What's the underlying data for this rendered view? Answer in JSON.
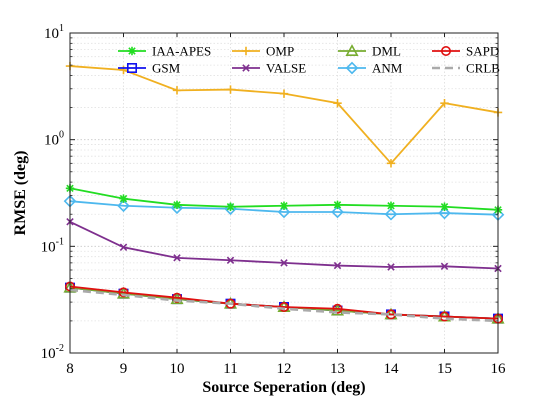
{
  "chart_data": {
    "type": "line",
    "title": "",
    "xlabel": "Source Seperation (deg)",
    "ylabel": "RMSE (deg)",
    "xlim": [
      8,
      16
    ],
    "ylim": [
      0.01,
      10
    ],
    "yscale": "log",
    "grid": true,
    "legend_position": "top",
    "x": [
      8,
      9,
      10,
      11,
      12,
      13,
      14,
      15,
      16
    ],
    "x_tick_labels": [
      "8",
      "9",
      "10",
      "11",
      "12",
      "13",
      "14",
      "15",
      "16"
    ],
    "y_ticks": [
      {
        "value": 10,
        "base": "10",
        "exp": "1"
      },
      {
        "value": 1,
        "base": "10",
        "exp": "0"
      },
      {
        "value": 0.1,
        "base": "10",
        "exp": "-1"
      },
      {
        "value": 0.01,
        "base": "10",
        "exp": "-2"
      }
    ],
    "series": [
      {
        "name": "IAA-APES",
        "color": "#22dd22",
        "marker": "asterisk",
        "dash": "solid",
        "values": [
          0.35,
          0.28,
          0.245,
          0.235,
          0.24,
          0.245,
          0.24,
          0.235,
          0.22
        ]
      },
      {
        "name": "GSM",
        "color": "#1111ee",
        "marker": "square",
        "dash": "solid",
        "values": [
          0.041,
          0.036,
          0.032,
          0.029,
          0.027,
          0.025,
          0.023,
          0.022,
          0.021
        ]
      },
      {
        "name": "OMP",
        "color": "#f0b020",
        "marker": "plus",
        "dash": "solid",
        "values": [
          4.9,
          4.5,
          2.9,
          2.95,
          2.7,
          2.2,
          0.6,
          2.2,
          1.8
        ]
      },
      {
        "name": "VALSE",
        "color": "#7e2f8e",
        "marker": "x",
        "dash": "solid",
        "values": [
          0.17,
          0.098,
          0.078,
          0.074,
          0.07,
          0.066,
          0.064,
          0.065,
          0.062
        ]
      },
      {
        "name": "DML",
        "color": "#77ac30",
        "marker": "triangle",
        "dash": "solid",
        "values": [
          0.041,
          0.036,
          0.032,
          0.029,
          0.027,
          0.025,
          0.023,
          0.022,
          0.021
        ]
      },
      {
        "name": "ANM",
        "color": "#4db8ee",
        "marker": "diamond",
        "dash": "solid",
        "values": [
          0.265,
          0.24,
          0.23,
          0.225,
          0.21,
          0.21,
          0.2,
          0.205,
          0.198
        ]
      },
      {
        "name": "SAPD",
        "color": "#e01010",
        "marker": "circle",
        "dash": "solid",
        "values": [
          0.042,
          0.037,
          0.033,
          0.029,
          0.027,
          0.026,
          0.023,
          0.022,
          0.021
        ]
      },
      {
        "name": "CRLB",
        "color": "#aaaaaa",
        "marker": "none",
        "dash": "dashed",
        "values": [
          0.039,
          0.035,
          0.031,
          0.029,
          0.026,
          0.024,
          0.023,
          0.021,
          0.02
        ]
      }
    ]
  }
}
